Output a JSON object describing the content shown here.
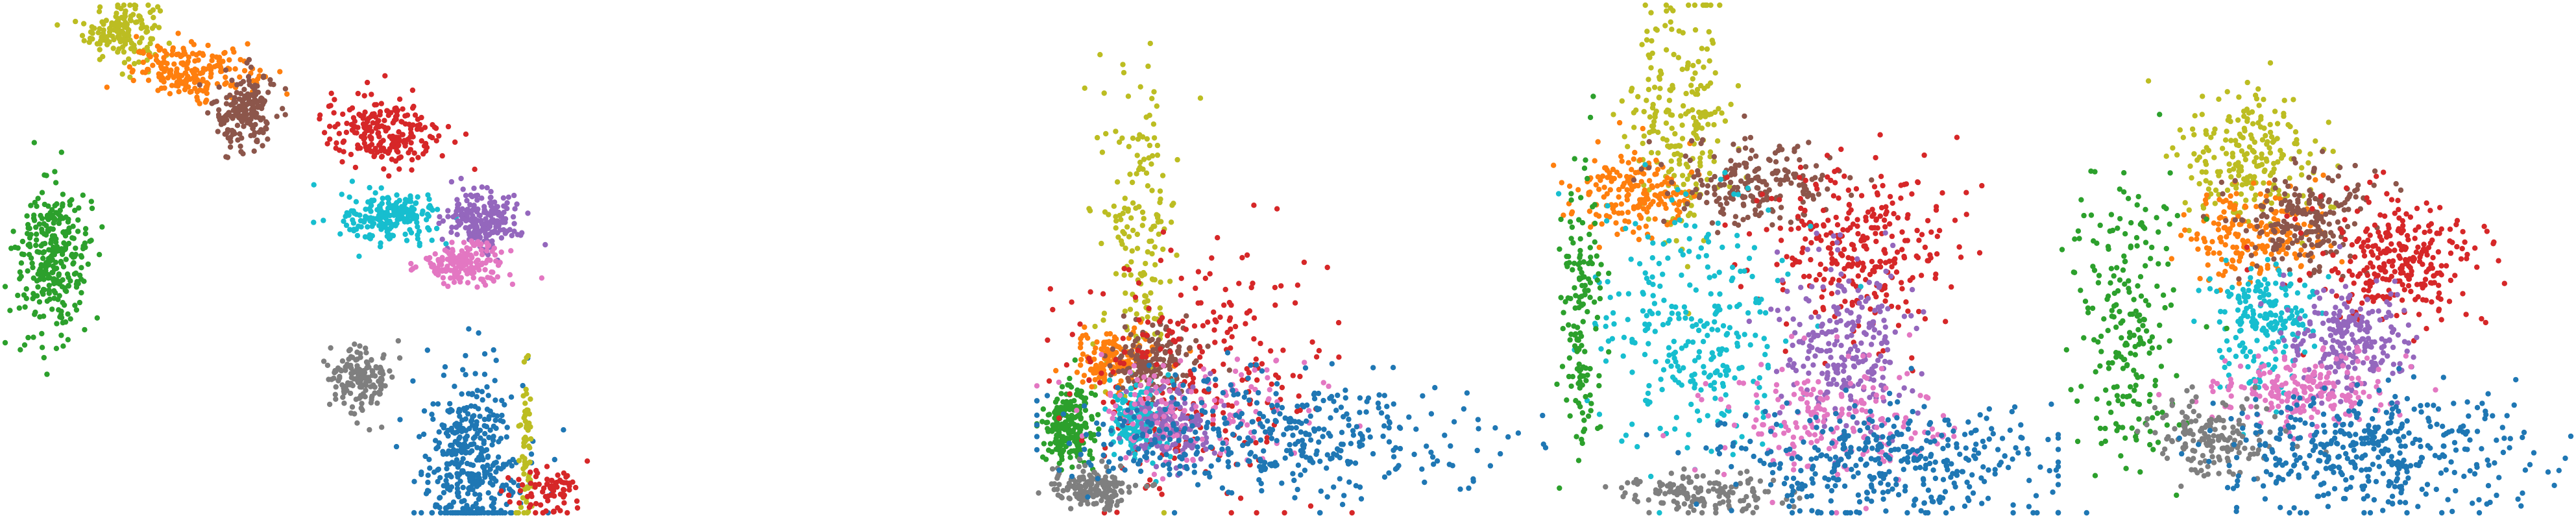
{
  "palette": {
    "blue": "#1f77b4",
    "orange": "#ff7f0e",
    "green": "#2ca02c",
    "red": "#d62728",
    "purple": "#9467bd",
    "brown": "#8c564b",
    "pink": "#e377c2",
    "gray": "#7f7f7f",
    "olive": "#bcbd22",
    "cyan": "#17becf"
  },
  "chart_data": [
    {
      "type": "scatter",
      "title": "",
      "xlabel": "",
      "ylabel": "",
      "axes_visible": false,
      "grid": false,
      "legend": "none",
      "xlim": [
        0,
        100
      ],
      "ylim": [
        0,
        100
      ],
      "clusters": [
        {
          "color": "olive",
          "cx": 19,
          "cy": 95,
          "sx": 3,
          "sy": 3,
          "n": 160
        },
        {
          "color": "orange",
          "cx": 31,
          "cy": 87,
          "sx": 5,
          "sy": 2.5,
          "n": 200
        },
        {
          "color": "brown",
          "cx": 39,
          "cy": 79,
          "sx": 2.5,
          "sy": 4,
          "n": 180
        },
        {
          "color": "red",
          "cx": 62,
          "cy": 75,
          "sx": 5,
          "sy": 3.5,
          "n": 220
        },
        {
          "color": "cyan",
          "cx": 63,
          "cy": 58,
          "sx": 4,
          "sy": 2.5,
          "n": 200
        },
        {
          "color": "purple",
          "cx": 78,
          "cy": 58,
          "sx": 3,
          "sy": 3,
          "n": 200
        },
        {
          "color": "pink",
          "cx": 75,
          "cy": 49,
          "sx": 3.5,
          "sy": 2,
          "n": 170
        },
        {
          "color": "green",
          "cx": 8,
          "cy": 50,
          "sx": 3,
          "sy": 7,
          "n": 300
        },
        {
          "color": "gray",
          "cx": 58,
          "cy": 27,
          "sx": 2.5,
          "sy": 3.5,
          "n": 150
        },
        {
          "color": "blue",
          "cx": 76,
          "cy": 10,
          "sx": 4,
          "sy": 9,
          "n": 400
        },
        {
          "color": "olive",
          "cx": 85,
          "cy": 12,
          "sx": 0.5,
          "sy": 8,
          "n": 60
        },
        {
          "color": "red",
          "cx": 89,
          "cy": 4,
          "sx": 3,
          "sy": 2.5,
          "n": 80
        }
      ]
    },
    {
      "type": "scatter",
      "title": "",
      "xlabel": "",
      "ylabel": "",
      "axes_visible": false,
      "grid": false,
      "legend": "none",
      "xlim": [
        0,
        100
      ],
      "ylim": [
        0,
        100
      ],
      "clusters": [
        {
          "color": "olive",
          "cx": 20,
          "cy": 55,
          "sx": 4,
          "sy": 16,
          "n": 180
        },
        {
          "color": "green",
          "cx": 6,
          "cy": 17,
          "sx": 2.5,
          "sy": 4,
          "n": 220
        },
        {
          "color": "orange",
          "cx": 15,
          "cy": 30,
          "sx": 4,
          "sy": 3,
          "n": 160
        },
        {
          "color": "brown",
          "cx": 23,
          "cy": 30,
          "sx": 4,
          "sy": 3.5,
          "n": 160
        },
        {
          "color": "red",
          "cx": 32,
          "cy": 28,
          "sx": 12,
          "sy": 12,
          "n": 260
        },
        {
          "color": "cyan",
          "cx": 20,
          "cy": 18,
          "sx": 3,
          "sy": 4,
          "n": 150
        },
        {
          "color": "purple",
          "cx": 26,
          "cy": 17,
          "sx": 4,
          "sy": 4,
          "n": 150
        },
        {
          "color": "pink",
          "cx": 30,
          "cy": 20,
          "sx": 12,
          "sy": 6,
          "n": 140
        },
        {
          "color": "gray",
          "cx": 11,
          "cy": 5,
          "sx": 4,
          "sy": 2,
          "n": 180
        },
        {
          "color": "blue",
          "cx": 45,
          "cy": 15,
          "sx": 20,
          "sy": 6,
          "n": 420
        }
      ]
    },
    {
      "type": "scatter",
      "title": "",
      "xlabel": "",
      "ylabel": "",
      "axes_visible": false,
      "grid": false,
      "legend": "none",
      "xlim": [
        0,
        100
      ],
      "ylim": [
        0,
        100
      ],
      "clusters": [
        {
          "color": "olive",
          "cx": 26,
          "cy": 78,
          "sx": 5,
          "sy": 12,
          "n": 220
        },
        {
          "color": "orange",
          "cx": 17,
          "cy": 63,
          "sx": 6,
          "sy": 4,
          "n": 180
        },
        {
          "color": "brown",
          "cx": 40,
          "cy": 65,
          "sx": 8,
          "sy": 4,
          "n": 200
        },
        {
          "color": "red",
          "cx": 60,
          "cy": 52,
          "sx": 9,
          "sy": 8,
          "n": 300
        },
        {
          "color": "cyan",
          "cx": 28,
          "cy": 35,
          "sx": 10,
          "sy": 13,
          "n": 280
        },
        {
          "color": "purple",
          "cx": 58,
          "cy": 33,
          "sx": 6,
          "sy": 9,
          "n": 240
        },
        {
          "color": "pink",
          "cx": 56,
          "cy": 18,
          "sx": 12,
          "sy": 6,
          "n": 200
        },
        {
          "color": "green",
          "cx": 6,
          "cy": 38,
          "sx": 2,
          "sy": 14,
          "n": 150
        },
        {
          "color": "gray",
          "cx": 30,
          "cy": 4,
          "sx": 8,
          "sy": 2,
          "n": 140
        },
        {
          "color": "blue",
          "cx": 65,
          "cy": 10,
          "sx": 17,
          "sy": 6,
          "n": 380
        }
      ]
    },
    {
      "type": "scatter",
      "title": "",
      "xlabel": "",
      "ylabel": "",
      "axes_visible": false,
      "grid": false,
      "legend": "none",
      "xlim": [
        0,
        100
      ],
      "ylim": [
        0,
        100
      ],
      "clusters": [
        {
          "color": "olive",
          "cx": 37,
          "cy": 70,
          "sx": 7,
          "sy": 7,
          "n": 220
        },
        {
          "color": "orange",
          "cx": 37,
          "cy": 55,
          "sx": 7,
          "sy": 5,
          "n": 200
        },
        {
          "color": "brown",
          "cx": 48,
          "cy": 58,
          "sx": 7,
          "sy": 5,
          "n": 200
        },
        {
          "color": "red",
          "cx": 65,
          "cy": 50,
          "sx": 9,
          "sy": 6,
          "n": 280
        },
        {
          "color": "cyan",
          "cx": 40,
          "cy": 37,
          "sx": 5,
          "sy": 7,
          "n": 200
        },
        {
          "color": "purple",
          "cx": 56,
          "cy": 34,
          "sx": 6,
          "sy": 5,
          "n": 220
        },
        {
          "color": "pink",
          "cx": 47,
          "cy": 24,
          "sx": 9,
          "sy": 4,
          "n": 200
        },
        {
          "color": "green",
          "cx": 13,
          "cy": 36,
          "sx": 5,
          "sy": 15,
          "n": 220
        },
        {
          "color": "gray",
          "cx": 30,
          "cy": 15,
          "sx": 6,
          "sy": 4,
          "n": 160
        },
        {
          "color": "blue",
          "cx": 62,
          "cy": 12,
          "sx": 15,
          "sy": 6,
          "n": 420
        }
      ]
    }
  ]
}
